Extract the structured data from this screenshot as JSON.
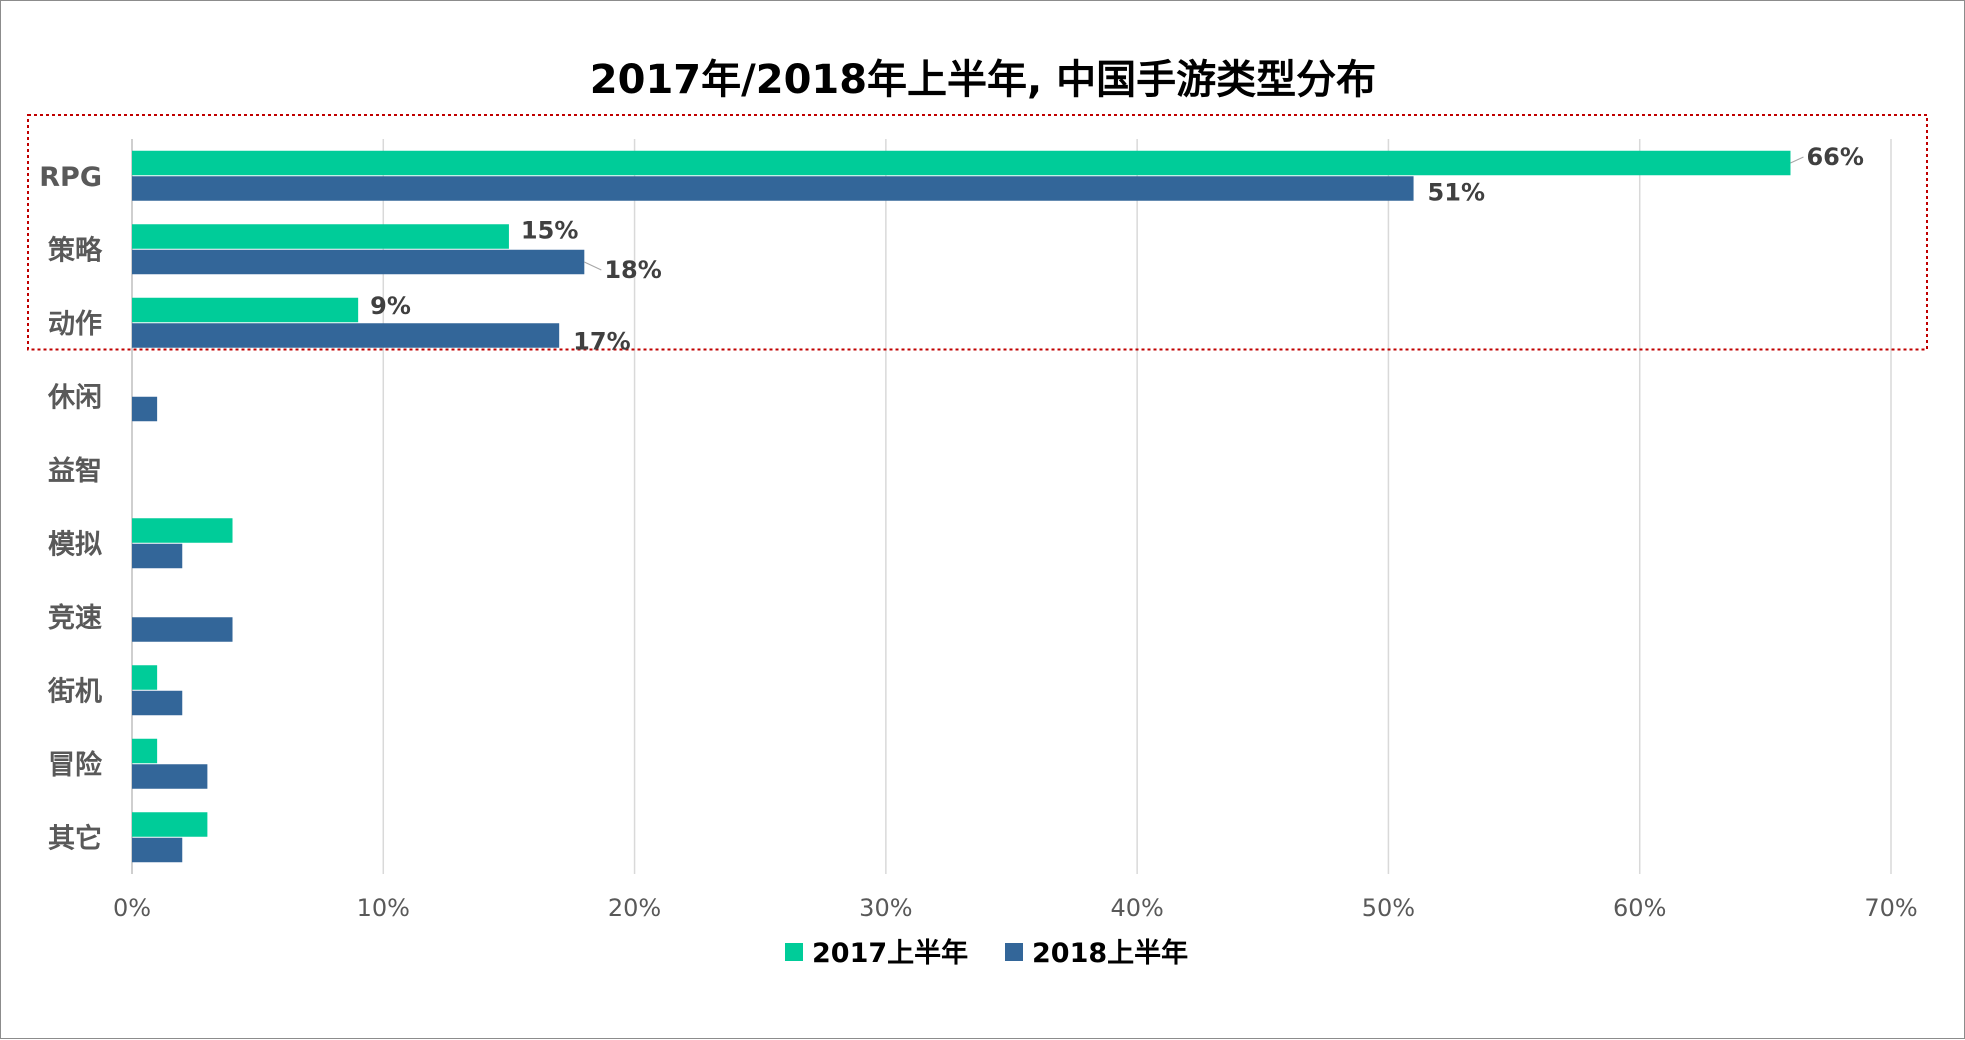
{
  "chart_data": {
    "type": "bar",
    "orientation": "horizontal",
    "title": "2017年/2018年上半年, 中国手游类型分布",
    "categories": [
      "RPG",
      "策略",
      "动作",
      "休闲",
      "益智",
      "模拟",
      "竞速",
      "街机",
      "冒险",
      "其它"
    ],
    "series": [
      {
        "name": "2017上半年",
        "color": "#00CC99",
        "values": [
          66,
          15,
          9,
          0,
          0,
          4,
          0,
          1,
          1,
          3
        ]
      },
      {
        "name": "2018上半年",
        "color": "#336699",
        "values": [
          51,
          18,
          17,
          1,
          0,
          2,
          4,
          2,
          3,
          2
        ]
      }
    ],
    "data_labels": [
      {
        "category": "RPG",
        "series": "2017上半年",
        "text": "66%"
      },
      {
        "category": "RPG",
        "series": "2018上半年",
        "text": "51%"
      },
      {
        "category": "策略",
        "series": "2017上半年",
        "text": "15%"
      },
      {
        "category": "策略",
        "series": "2018上半年",
        "text": "18%"
      },
      {
        "category": "动作",
        "series": "2017上半年",
        "text": "9%"
      },
      {
        "category": "动作",
        "series": "2018上半年",
        "text": "17%"
      }
    ],
    "xlim": [
      0,
      70
    ],
    "x_ticks": [
      0,
      10,
      20,
      30,
      40,
      50,
      60,
      70
    ],
    "x_tick_labels": [
      "0%",
      "10%",
      "20%",
      "30%",
      "40%",
      "50%",
      "60%",
      "70%"
    ],
    "grid": "vertical",
    "legend_position": "bottom",
    "highlight": {
      "categories": [
        "RPG",
        "策略",
        "动作"
      ],
      "color": "#C00000",
      "style": "dotted"
    }
  }
}
